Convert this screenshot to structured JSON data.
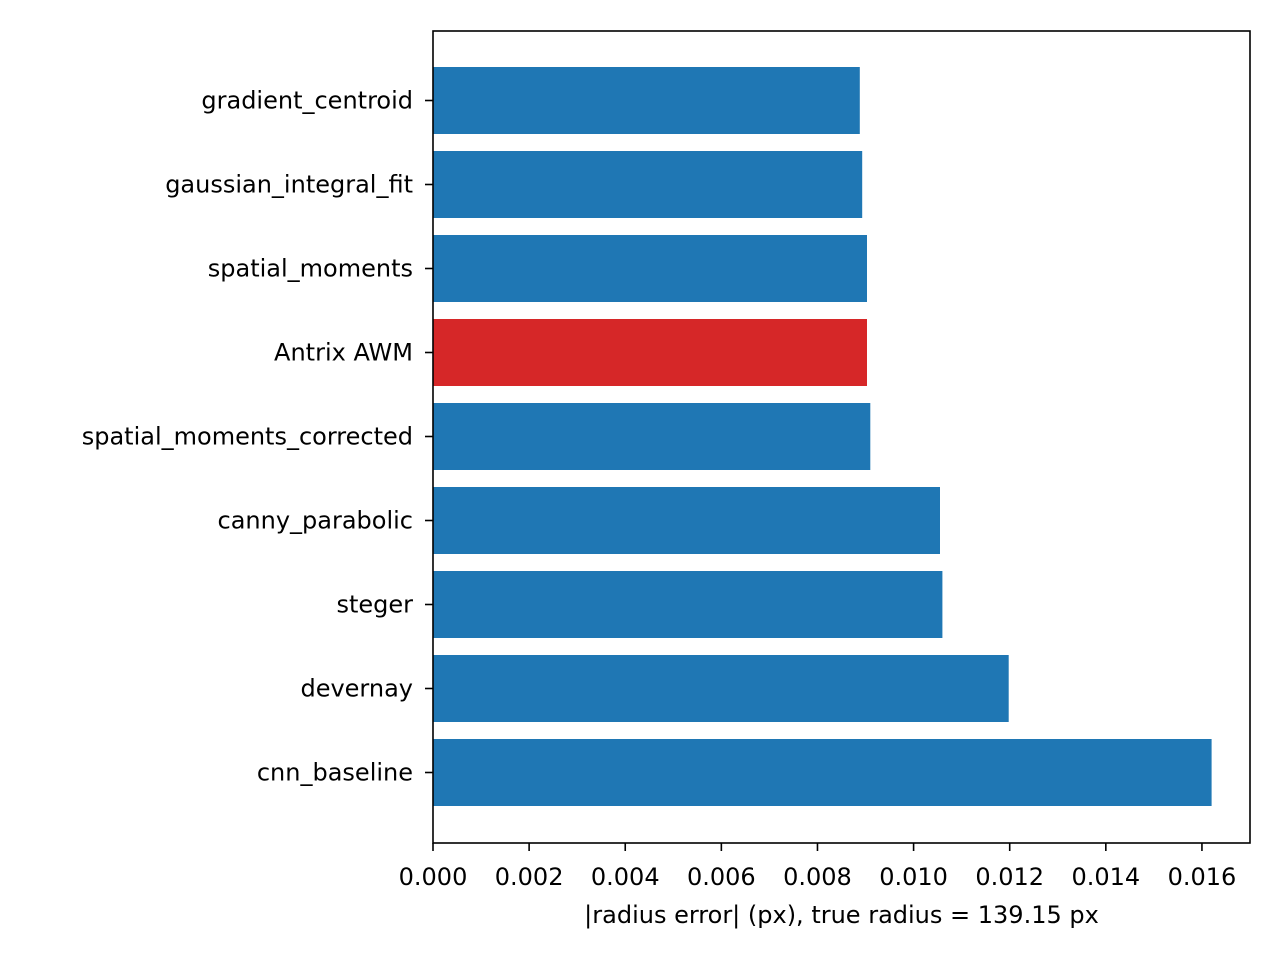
{
  "chart_data": {
    "type": "bar",
    "orientation": "horizontal",
    "title": "",
    "xlabel": "|radius error| (px), true radius = 139.15 px",
    "ylabel": "",
    "xlim": [
      0.0,
      0.017
    ],
    "x_ticks": [
      "0.000",
      "0.002",
      "0.004",
      "0.006",
      "0.008",
      "0.010",
      "0.012",
      "0.014",
      "0.016"
    ],
    "categories": [
      "gradient_centroid",
      "gaussian_integral_fit",
      "spatial_moments",
      "Antrix AWM",
      "spatial_moments_corrected",
      "canny_parabolic",
      "steger",
      "devernay",
      "cnn_baseline"
    ],
    "values": [
      0.00888,
      0.00893,
      0.00903,
      0.00903,
      0.0091,
      0.01055,
      0.0106,
      0.01198,
      0.0162
    ],
    "colors": [
      "#1f77b4",
      "#1f77b4",
      "#1f77b4",
      "#d62728",
      "#1f77b4",
      "#1f77b4",
      "#1f77b4",
      "#1f77b4",
      "#1f77b4"
    ],
    "grid": false,
    "legend": "none"
  }
}
